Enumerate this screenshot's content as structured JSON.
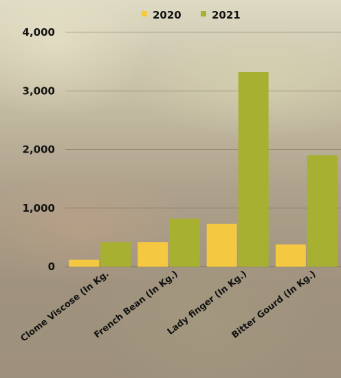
{
  "chart_data": {
    "type": "bar",
    "title": "",
    "xlabel": "",
    "ylabel": "",
    "categories": [
      "Clome Viscose (In Kg.",
      "French Bean (In Kg.)",
      "Lady finger (In Kg.)",
      "Bitter Gourd (In Kg.)"
    ],
    "series": [
      {
        "name": "2020",
        "color": "#f5c842",
        "values": [
          120,
          420,
          730,
          380
        ]
      },
      {
        "name": "2021",
        "color": "#a8b032",
        "values": [
          420,
          820,
          3320,
          1900
        ]
      }
    ],
    "ylim": [
      0,
      4000
    ],
    "yticks": [
      "0",
      "1,000",
      "2,000",
      "3,000",
      "4,000"
    ],
    "ytick_values": [
      0,
      1000,
      2000,
      3000,
      4000
    ],
    "grid": true,
    "legend_position": "top-center"
  }
}
